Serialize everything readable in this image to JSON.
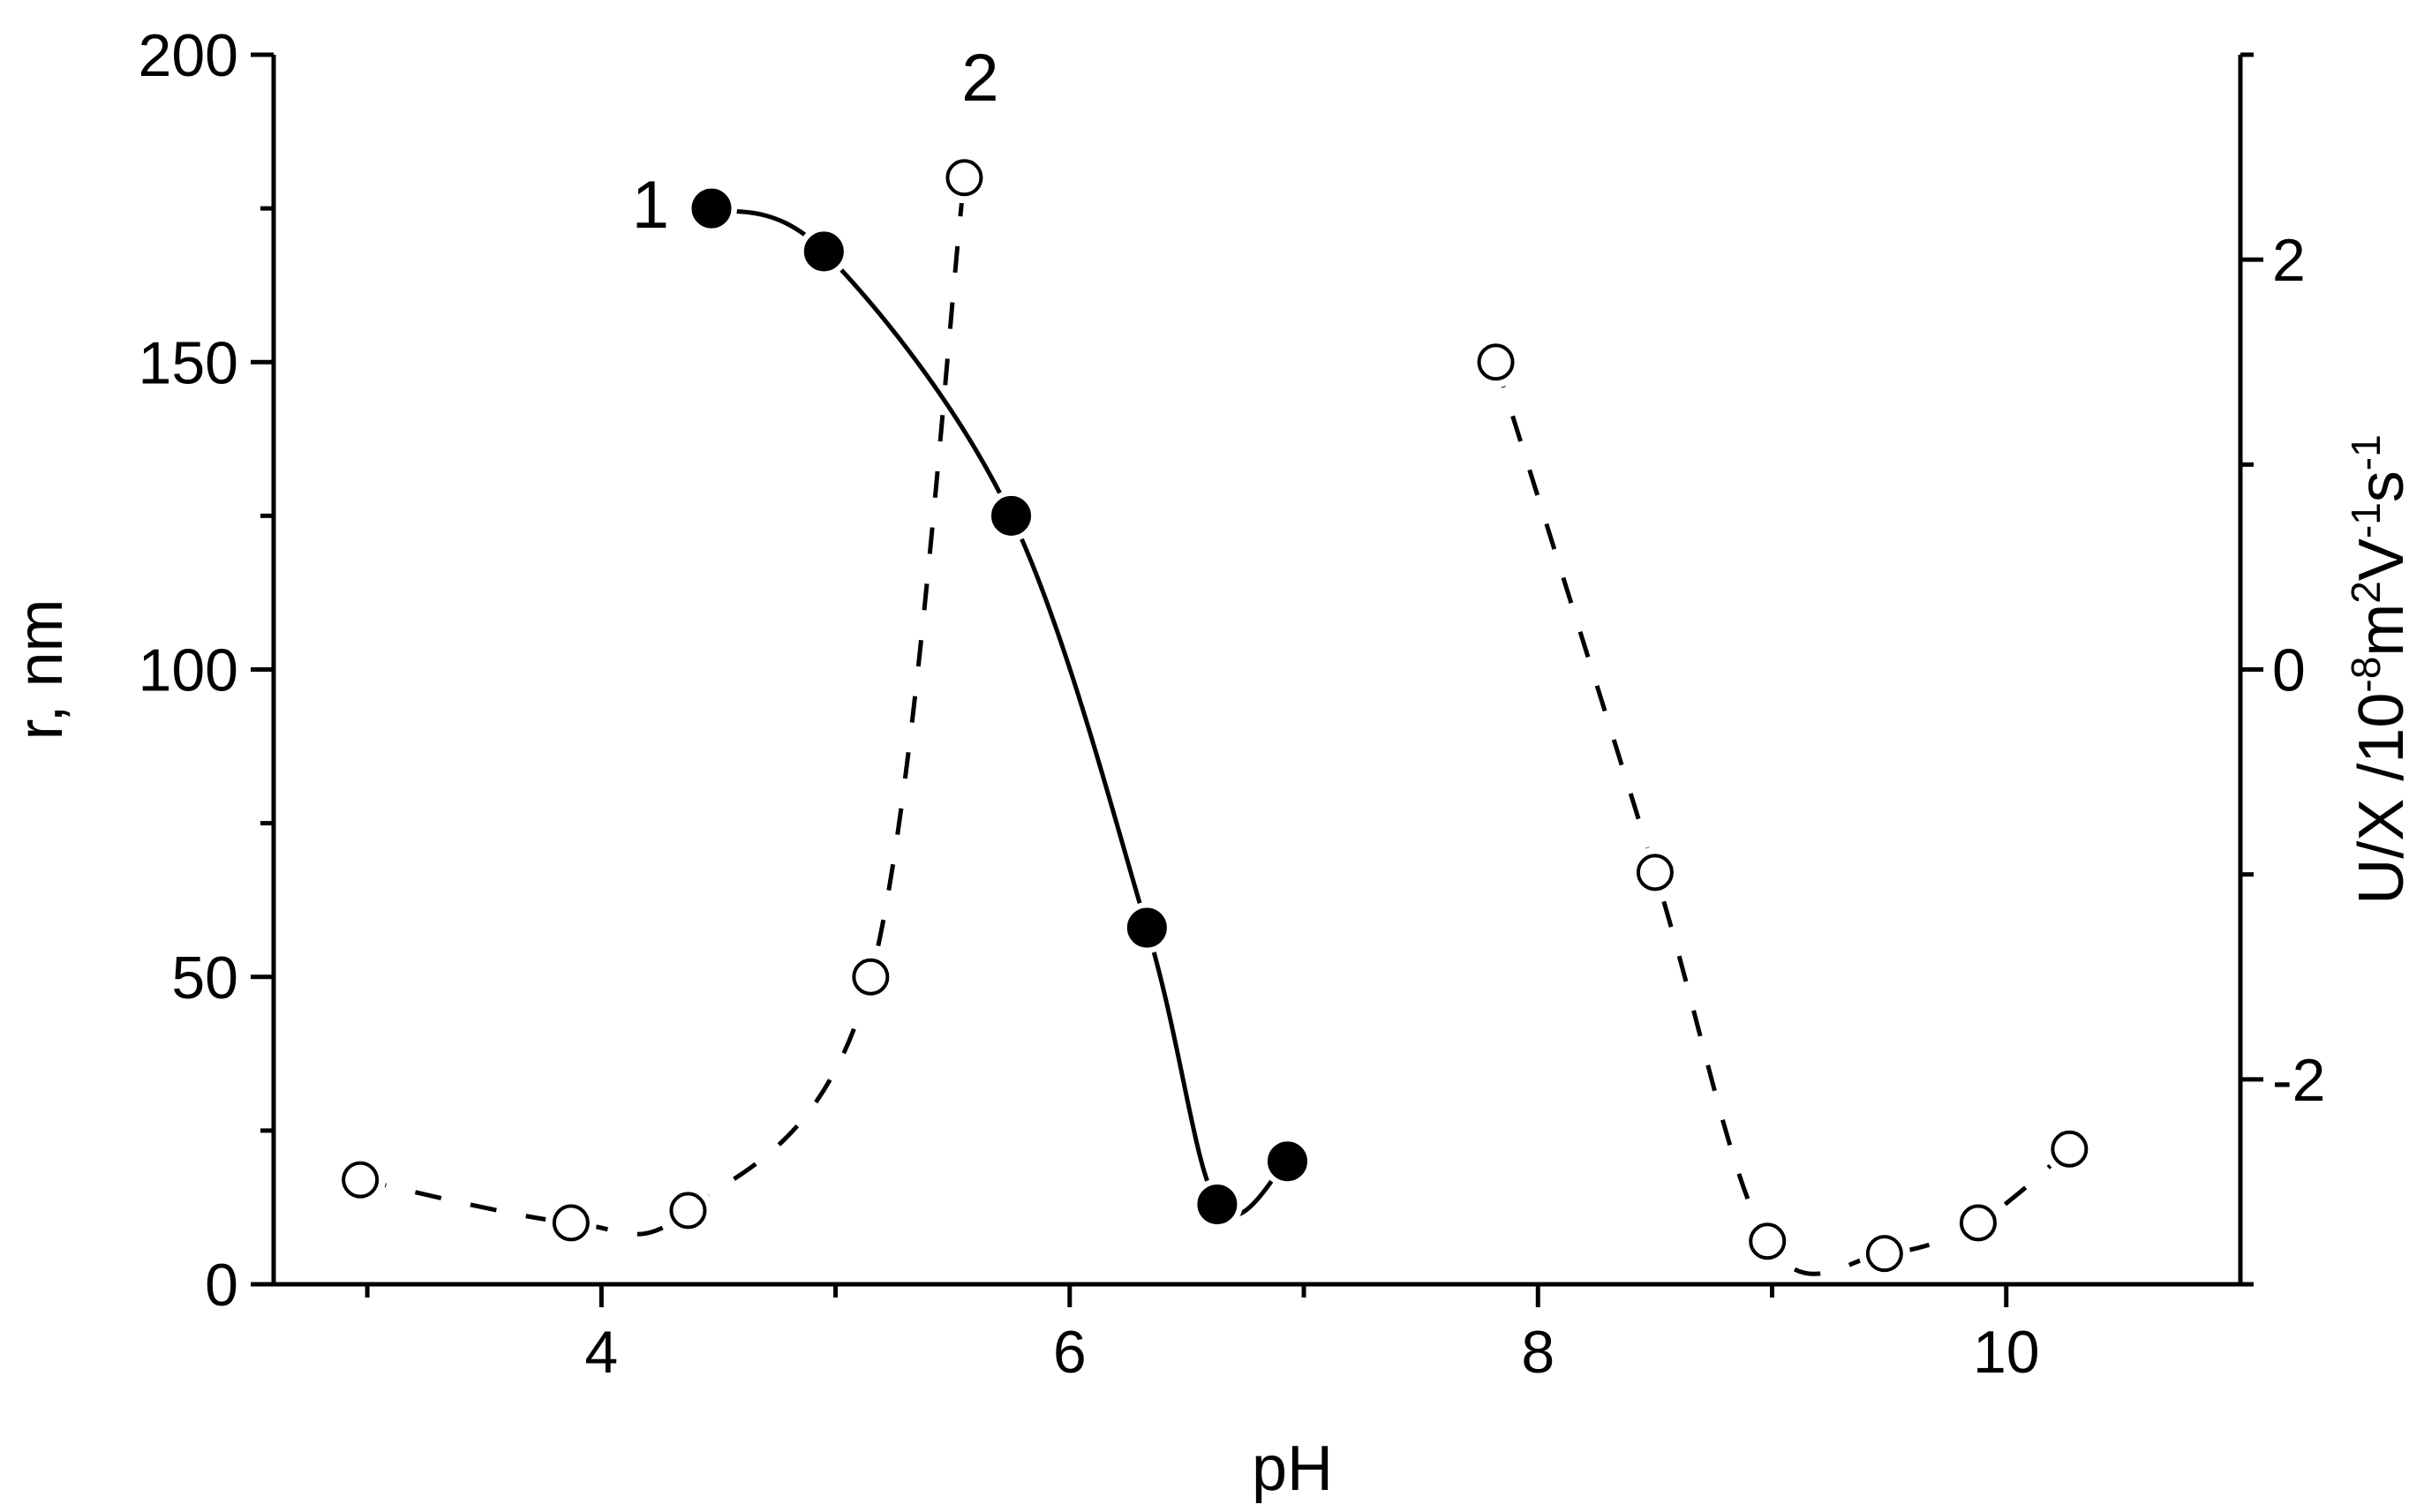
{
  "chart_data": {
    "type": "scatter",
    "xlabel": "pH",
    "ylabel_left": "r, nm",
    "ylabel_right": "U/X /10^-8 m^2 V^-1 s^-1",
    "xlim": [
      2.6,
      11.0
    ],
    "ylim_left": [
      0,
      200
    ],
    "ylim_right": [
      -3.0,
      3.0
    ],
    "x_ticks": [
      4,
      6,
      8,
      10
    ],
    "y_ticks_left": [
      0,
      50,
      100,
      150,
      200
    ],
    "y_ticks_right": [
      -2,
      0,
      2
    ],
    "grid": false,
    "legend": "none",
    "series": [
      {
        "name": "1",
        "marker": "filled-circle",
        "line": "solid",
        "points": [
          {
            "x": 4.47,
            "y": 175
          },
          {
            "x": 4.95,
            "y": 168
          },
          {
            "x": 5.75,
            "y": 125
          },
          {
            "x": 6.33,
            "y": 58
          },
          {
            "x": 6.63,
            "y": 13
          },
          {
            "x": 6.93,
            "y": 20
          }
        ]
      },
      {
        "name": "2",
        "marker": "open-circle",
        "line": "dashed",
        "points": [
          {
            "x": 2.97,
            "y": 17
          },
          {
            "x": 3.87,
            "y": 10
          },
          {
            "x": 4.37,
            "y": 12
          },
          {
            "x": 5.15,
            "y": 50
          },
          {
            "x": 5.55,
            "y": 180
          }
        ]
      },
      {
        "name": "2",
        "marker": "open-circle",
        "line": "dashed",
        "points": [
          {
            "x": 7.82,
            "y": 150
          },
          {
            "x": 8.5,
            "y": 67
          },
          {
            "x": 8.98,
            "y": 7
          },
          {
            "x": 9.48,
            "y": 5
          },
          {
            "x": 9.88,
            "y": 10
          },
          {
            "x": 10.27,
            "y": 22
          }
        ]
      }
    ],
    "curve_labels": [
      {
        "text": "1"
      },
      {
        "text": "2"
      }
    ]
  }
}
